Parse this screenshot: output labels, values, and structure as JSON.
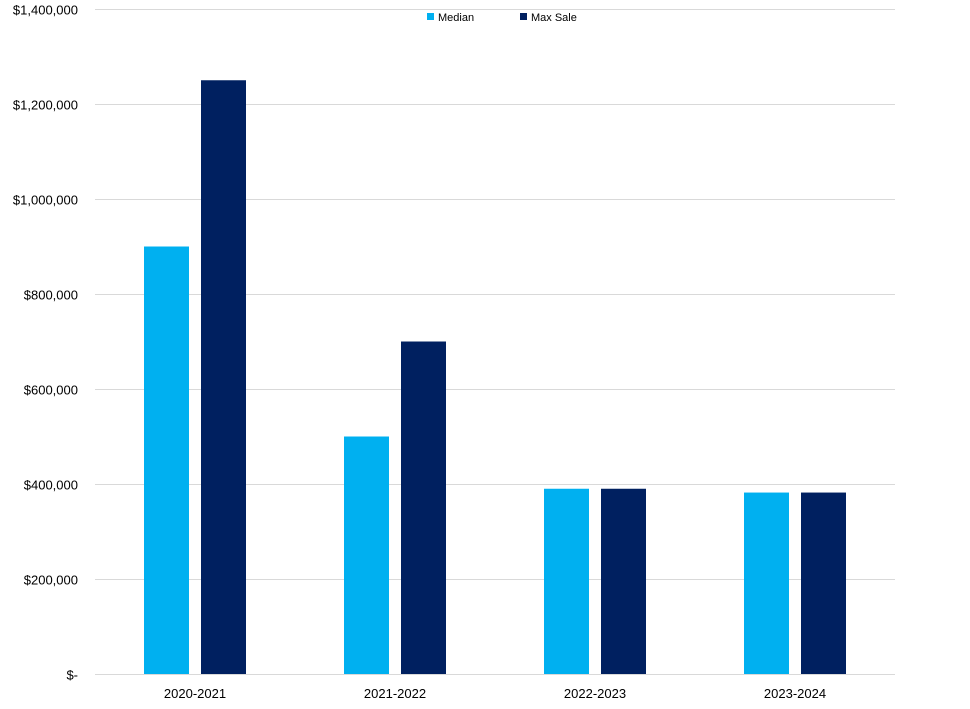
{
  "chart_data": {
    "type": "bar",
    "title": "",
    "xlabel": "",
    "ylabel": "",
    "categories": [
      "2020-2021",
      "2021-2022",
      "2022-2023",
      "2023-2024"
    ],
    "series": [
      {
        "name": "Median",
        "color": "#00B0F0",
        "values": [
          900000,
          500000,
          390000,
          382000
        ]
      },
      {
        "name": "Max Sale",
        "color": "#002060",
        "values": [
          1250000,
          700000,
          390000,
          382000
        ]
      }
    ],
    "ylim": [
      0,
      1400000
    ],
    "yticks": [
      0,
      200000,
      400000,
      600000,
      800000,
      1000000,
      1200000,
      1400000
    ],
    "ytick_labels": [
      "$-",
      "$200,000",
      "$400,000",
      "$600,000",
      "$800,000",
      "$1,000,000",
      "$1,200,000",
      "$1,400,000"
    ],
    "grid": true,
    "legend_position": "top-center",
    "gridline_color": "#D9D9D9"
  }
}
